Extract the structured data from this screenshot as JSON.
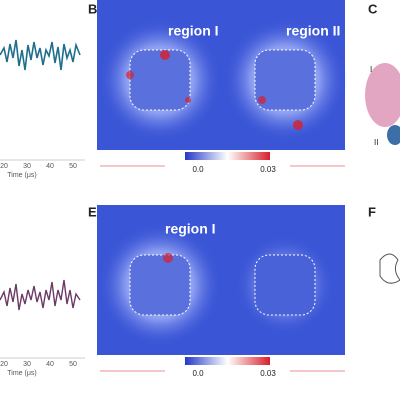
{
  "panels": [
    {
      "label": "B",
      "regions": [
        "region I",
        "region II"
      ],
      "colorbar": {
        "min": "0.0",
        "max": "0.03"
      }
    },
    {
      "label": "C",
      "sites": [
        "I",
        "II"
      ]
    },
    {
      "label": "E",
      "regions": [
        "region I"
      ],
      "colorbar": {
        "min": "0.0",
        "max": "0.03"
      }
    },
    {
      "label": "F"
    }
  ],
  "traces": [
    {
      "ticks": [
        "20",
        "30",
        "40",
        "50"
      ],
      "xlabel": "Time (μs)"
    },
    {
      "ticks": [
        "20",
        "30",
        "40",
        "50"
      ],
      "xlabel": "Time (μs)"
    }
  ]
}
